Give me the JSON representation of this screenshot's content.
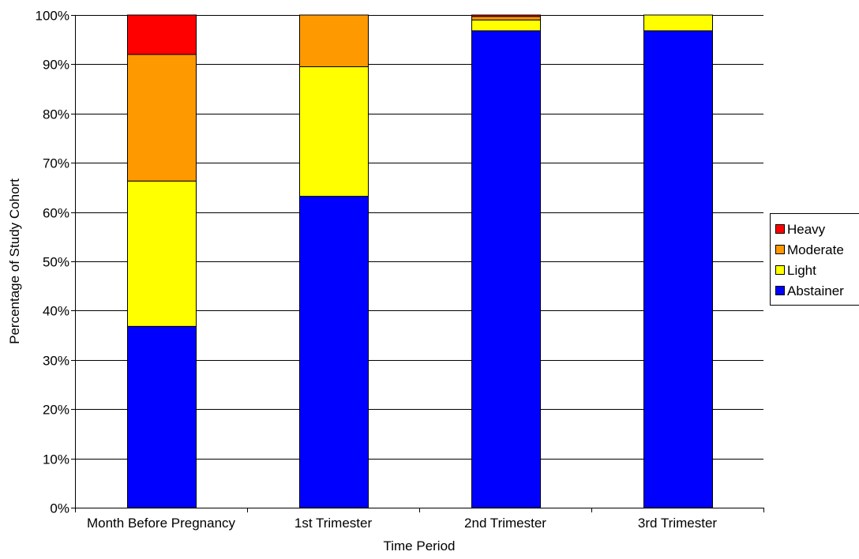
{
  "chart_data": {
    "type": "bar",
    "stacked": true,
    "percent_stacked": true,
    "title": "",
    "xlabel": "Time Period",
    "ylabel": "Percentage of Study Cohort",
    "categories": [
      "Month Before Pregnancy",
      "1st Trimester",
      "2nd Trimester",
      "3rd Trimester"
    ],
    "ylim": [
      0,
      100
    ],
    "y_ticks": [
      0,
      10,
      20,
      30,
      40,
      50,
      60,
      70,
      80,
      90,
      100
    ],
    "y_tick_labels": [
      "0%",
      "10%",
      "20%",
      "30%",
      "40%",
      "50%",
      "60%",
      "70%",
      "80%",
      "90%",
      "100%"
    ],
    "grid": true,
    "legend_position": "right",
    "series": [
      {
        "name": "Abstainer",
        "color": "#0000FF",
        "values": [
          36.8,
          63.2,
          96.8,
          96.8
        ]
      },
      {
        "name": "Light",
        "color": "#FFFF00",
        "values": [
          29.5,
          26.3,
          2.2,
          3.2
        ]
      },
      {
        "name": "Moderate",
        "color": "#FF9900",
        "values": [
          25.7,
          10.5,
          0.7,
          0
        ]
      },
      {
        "name": "Heavy",
        "color": "#FF0000",
        "values": [
          8.0,
          0,
          0.3,
          0
        ]
      }
    ]
  }
}
